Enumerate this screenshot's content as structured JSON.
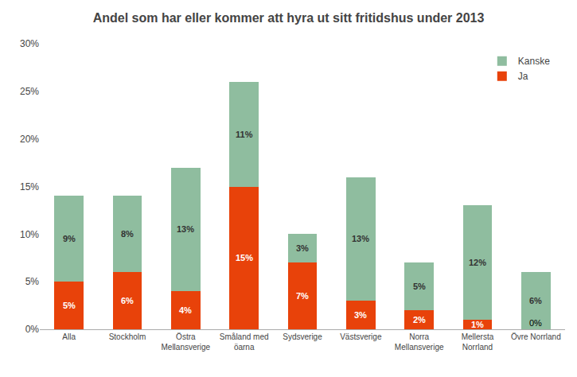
{
  "chart_data": {
    "type": "bar",
    "stacked": true,
    "title": "Andel som har eller kommer att hyra ut sitt fritidshus under 2013",
    "categories": [
      "Alla",
      "Stockholm",
      "Östra\nMellansverige",
      "Småland med\nöarna",
      "Sydsverige",
      "Västsverige",
      "Norra\nMellansverige",
      "Mellersta\nNorrland",
      "Övre Norrland"
    ],
    "series": [
      {
        "name": "Ja",
        "color": "#E8420A",
        "values": [
          5,
          6,
          4,
          15,
          7,
          3,
          2,
          1,
          0
        ],
        "value_labels": [
          "5%",
          "6%",
          "4%",
          "15%",
          "7%",
          "3%",
          "2%",
          "1%",
          "0%"
        ]
      },
      {
        "name": "Kanske",
        "color": "#8FBD9F",
        "values": [
          9,
          8,
          13,
          11,
          3,
          13,
          5,
          12,
          6
        ],
        "value_labels": [
          "9%",
          "8%",
          "13%",
          "11%",
          "3%",
          "13%",
          "5%",
          "12%",
          "6%"
        ]
      }
    ],
    "ylim": [
      0,
      30
    ],
    "yticks": [
      {
        "value": 0,
        "label": "0%"
      },
      {
        "value": 5,
        "label": "5%"
      },
      {
        "value": 10,
        "label": "10%"
      },
      {
        "value": 15,
        "label": "15%"
      },
      {
        "value": 20,
        "label": "20%"
      },
      {
        "value": 25,
        "label": "25%"
      },
      {
        "value": 30,
        "label": "30%"
      }
    ],
    "data_labels": true,
    "grid": false,
    "legend": "upper right"
  }
}
